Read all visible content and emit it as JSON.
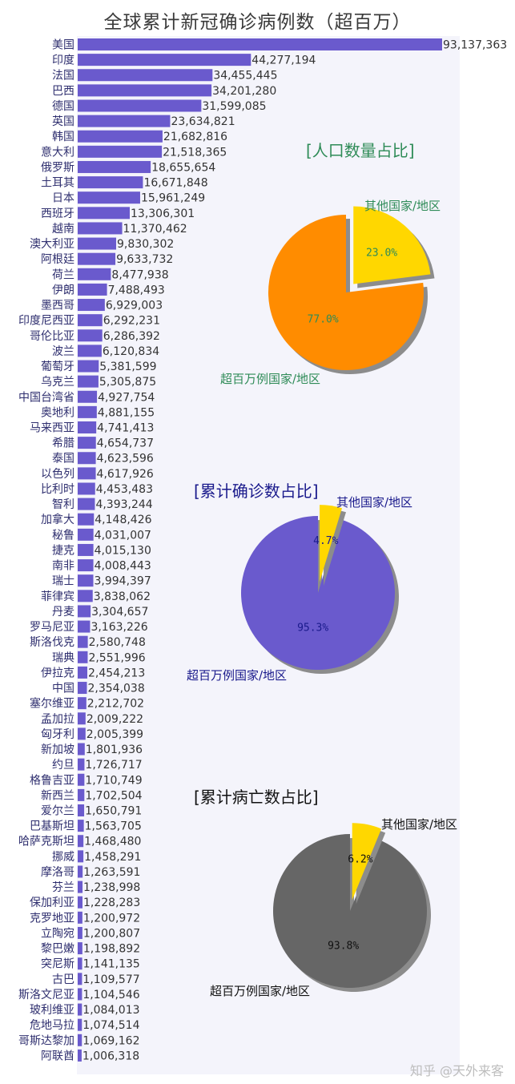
{
  "title": "全球累计新冠确诊病例数（超百万）",
  "watermark": "知乎 @天外来客",
  "colors": {
    "bar": "#6a5acd",
    "plot_bg": "#f4f4fb",
    "pie_orange": "#ff8c00",
    "pie_yellow": "#ffd700",
    "pie_purple": "#6a5acd",
    "pie_gray": "#666666"
  },
  "chart_data": [
    {
      "type": "bar",
      "orientation": "horizontal",
      "title": "全球累计新冠确诊病例数（超百万）",
      "categories": [
        "美国",
        "印度",
        "法国",
        "巴西",
        "德国",
        "英国",
        "韩国",
        "意大利",
        "俄罗斯",
        "土耳其",
        "日本",
        "西班牙",
        "越南",
        "澳大利亚",
        "阿根廷",
        "荷兰",
        "伊朗",
        "墨西哥",
        "印度尼西亚",
        "哥伦比亚",
        "波兰",
        "葡萄牙",
        "乌克兰",
        "中国台湾省",
        "奥地利",
        "马来西亚",
        "希腊",
        "泰国",
        "以色列",
        "比利时",
        "智利",
        "加拿大",
        "秘鲁",
        "捷克",
        "南非",
        "瑞士",
        "菲律宾",
        "丹麦",
        "罗马尼亚",
        "斯洛伐克",
        "瑞典",
        "伊拉克",
        "中国",
        "塞尔维亚",
        "孟加拉",
        "匈牙利",
        "新加坡",
        "约旦",
        "格鲁吉亚",
        "新西兰",
        "爱尔兰",
        "巴基斯坦",
        "哈萨克斯坦",
        "挪威",
        "摩洛哥",
        "芬兰",
        "保加利亚",
        "克罗地亚",
        "立陶宛",
        "黎巴嫩",
        "突尼斯",
        "古巴",
        "斯洛文尼亚",
        "玻利维亚",
        "危地马拉",
        "哥斯达黎加",
        "阿联酋"
      ],
      "values": [
        93137363,
        44277194,
        34455445,
        34201280,
        31599085,
        23634821,
        21682816,
        21518365,
        18655654,
        16671848,
        15961249,
        13306301,
        11370462,
        9830302,
        9633732,
        8477938,
        7488493,
        6929003,
        6292231,
        6286392,
        6120834,
        5381599,
        5305875,
        4927754,
        4881155,
        4741413,
        4654737,
        4623596,
        4617926,
        4453483,
        4393244,
        4148426,
        4031007,
        4015130,
        4008443,
        3994397,
        3838062,
        3304657,
        3163226,
        2580748,
        2551996,
        2454213,
        2354038,
        2212702,
        2009222,
        2005399,
        1801936,
        1726717,
        1710749,
        1702504,
        1650791,
        1563705,
        1468480,
        1458291,
        1263591,
        1238998,
        1228283,
        1200972,
        1200807,
        1198892,
        1141135,
        1109577,
        1104546,
        1084013,
        1074514,
        1069162,
        1006318
      ],
      "value_labels": [
        "93,137,363",
        "44,277,194",
        "34,455,445",
        "34,201,280",
        "31,599,085",
        "23,634,821",
        "21,682,816",
        "21,518,365",
        "18,655,654",
        "16,671,848",
        "15,961,249",
        "13,306,301",
        "11,370,462",
        "9,830,302",
        "9,633,732",
        "8,477,938",
        "7,488,493",
        "6,929,003",
        "6,292,231",
        "6,286,392",
        "6,120,834",
        "5,381,599",
        "5,305,875",
        "4,927,754",
        "4,881,155",
        "4,741,413",
        "4,654,737",
        "4,623,596",
        "4,617,926",
        "4,453,483",
        "4,393,244",
        "4,148,426",
        "4,031,007",
        "4,015,130",
        "4,008,443",
        "3,994,397",
        "3,838,062",
        "3,304,657",
        "3,163,226",
        "2,580,748",
        "2,551,996",
        "2,454,213",
        "2,354,038",
        "2,212,702",
        "2,009,222",
        "2,005,399",
        "1,801,936",
        "1,726,717",
        "1,710,749",
        "1,702,504",
        "1,650,791",
        "1,563,705",
        "1,468,480",
        "1,458,291",
        "1,263,591",
        "1,238,998",
        "1,228,283",
        "1,200,972",
        "1,200,807",
        "1,198,892",
        "1,141,135",
        "1,109,577",
        "1,104,546",
        "1,084,013",
        "1,074,514",
        "1,069,162",
        "1,006,318"
      ]
    },
    {
      "type": "pie",
      "title": "[人口数量占比]",
      "title_color": "#2e8b57",
      "label_color": "#2e8b57",
      "slices": [
        {
          "name": "超百万例国家/地区",
          "value": 77.0,
          "label": "77.0%",
          "color": "#ff8c00",
          "exploded": false
        },
        {
          "name": "其他国家/地区",
          "value": 23.0,
          "label": "23.0%",
          "color": "#ffd700",
          "exploded": true
        }
      ]
    },
    {
      "type": "pie",
      "title": "[累计确诊数占比]",
      "title_color": "#1a1a8c",
      "label_color": "#1a1a8c",
      "slices": [
        {
          "name": "超百万例国家/地区",
          "value": 95.3,
          "label": "95.3%",
          "color": "#6a5acd",
          "exploded": false
        },
        {
          "name": "其他国家/地区",
          "value": 4.7,
          "label": "4.7%",
          "color": "#ffd700",
          "exploded": true
        }
      ]
    },
    {
      "type": "pie",
      "title": "[累计病亡数占比]",
      "title_color": "#111111",
      "label_color": "#111111",
      "slices": [
        {
          "name": "超百万例国家/地区",
          "value": 93.8,
          "label": "93.8%",
          "color": "#666666",
          "exploded": false
        },
        {
          "name": "其他国家/地区",
          "value": 6.2,
          "label": "6.2%",
          "color": "#ffd700",
          "exploded": true
        }
      ]
    }
  ]
}
